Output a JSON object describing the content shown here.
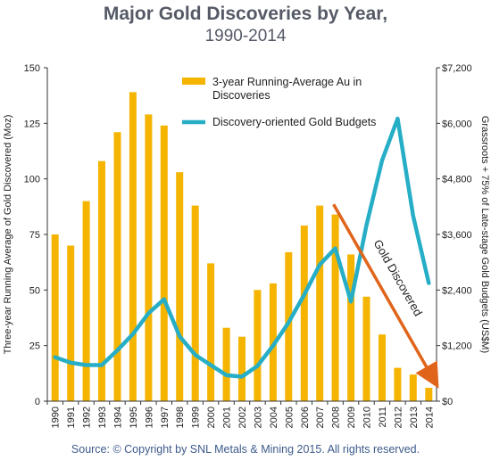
{
  "chart_data": {
    "type": "bar",
    "title": "Major Gold Discoveries by Year,",
    "subtitle": "1990-2014",
    "source": "Source:  © Copyright by SNL Metals & Mining 2015.  All rights reserved.",
    "ylabel": "Three-year Running Average of Gold Discovered (Moz)",
    "y2label": "Grassroots + 75% of Late-stage Gold Budgets (US$M)",
    "ylim": [
      0,
      150
    ],
    "y2lim": [
      0,
      7200
    ],
    "yticks": [
      "0",
      "25",
      "50",
      "75",
      "100",
      "125",
      "150"
    ],
    "y2ticks": [
      "$0",
      "$1,200",
      "$2,400",
      "$3,600",
      "$4,800",
      "$6,000",
      "$7,200"
    ],
    "categories": [
      "1990",
      "1991",
      "1992",
      "1993",
      "1994",
      "1995",
      "1996",
      "1997",
      "1998",
      "1999",
      "2000",
      "2001",
      "2002",
      "2003",
      "2004",
      "2005",
      "2006",
      "2007",
      "2008",
      "2009",
      "2010",
      "2011",
      "2012",
      "2013",
      "2014"
    ],
    "series": [
      {
        "name": "3-year Running-Average Au in Discoveries",
        "kind": "bar",
        "axis": "left",
        "color": "#f5b400",
        "values": [
          75,
          70,
          90,
          108,
          121,
          139,
          129,
          124,
          103,
          88,
          62,
          33,
          29,
          50,
          53,
          67,
          79,
          88,
          84,
          66,
          47,
          30,
          15,
          12,
          6
        ]
      },
      {
        "name": "Discovery-oriented Gold Budgets",
        "kind": "line",
        "axis": "right",
        "color": "#26aec6",
        "values": [
          950,
          830,
          780,
          780,
          1100,
          1450,
          1900,
          2200,
          1400,
          1000,
          780,
          560,
          530,
          760,
          1200,
          1700,
          2300,
          2950,
          3300,
          2150,
          3800,
          5200,
          6100,
          4000,
          2550
        ]
      }
    ],
    "annotation": {
      "text": "Gold Discovered",
      "color": "#e0651a",
      "from": {
        "x": "2008",
        "y2": 4250
      },
      "to": {
        "x": "2014",
        "y2": 450
      }
    },
    "legend_position": "top-center",
    "grid": false
  }
}
